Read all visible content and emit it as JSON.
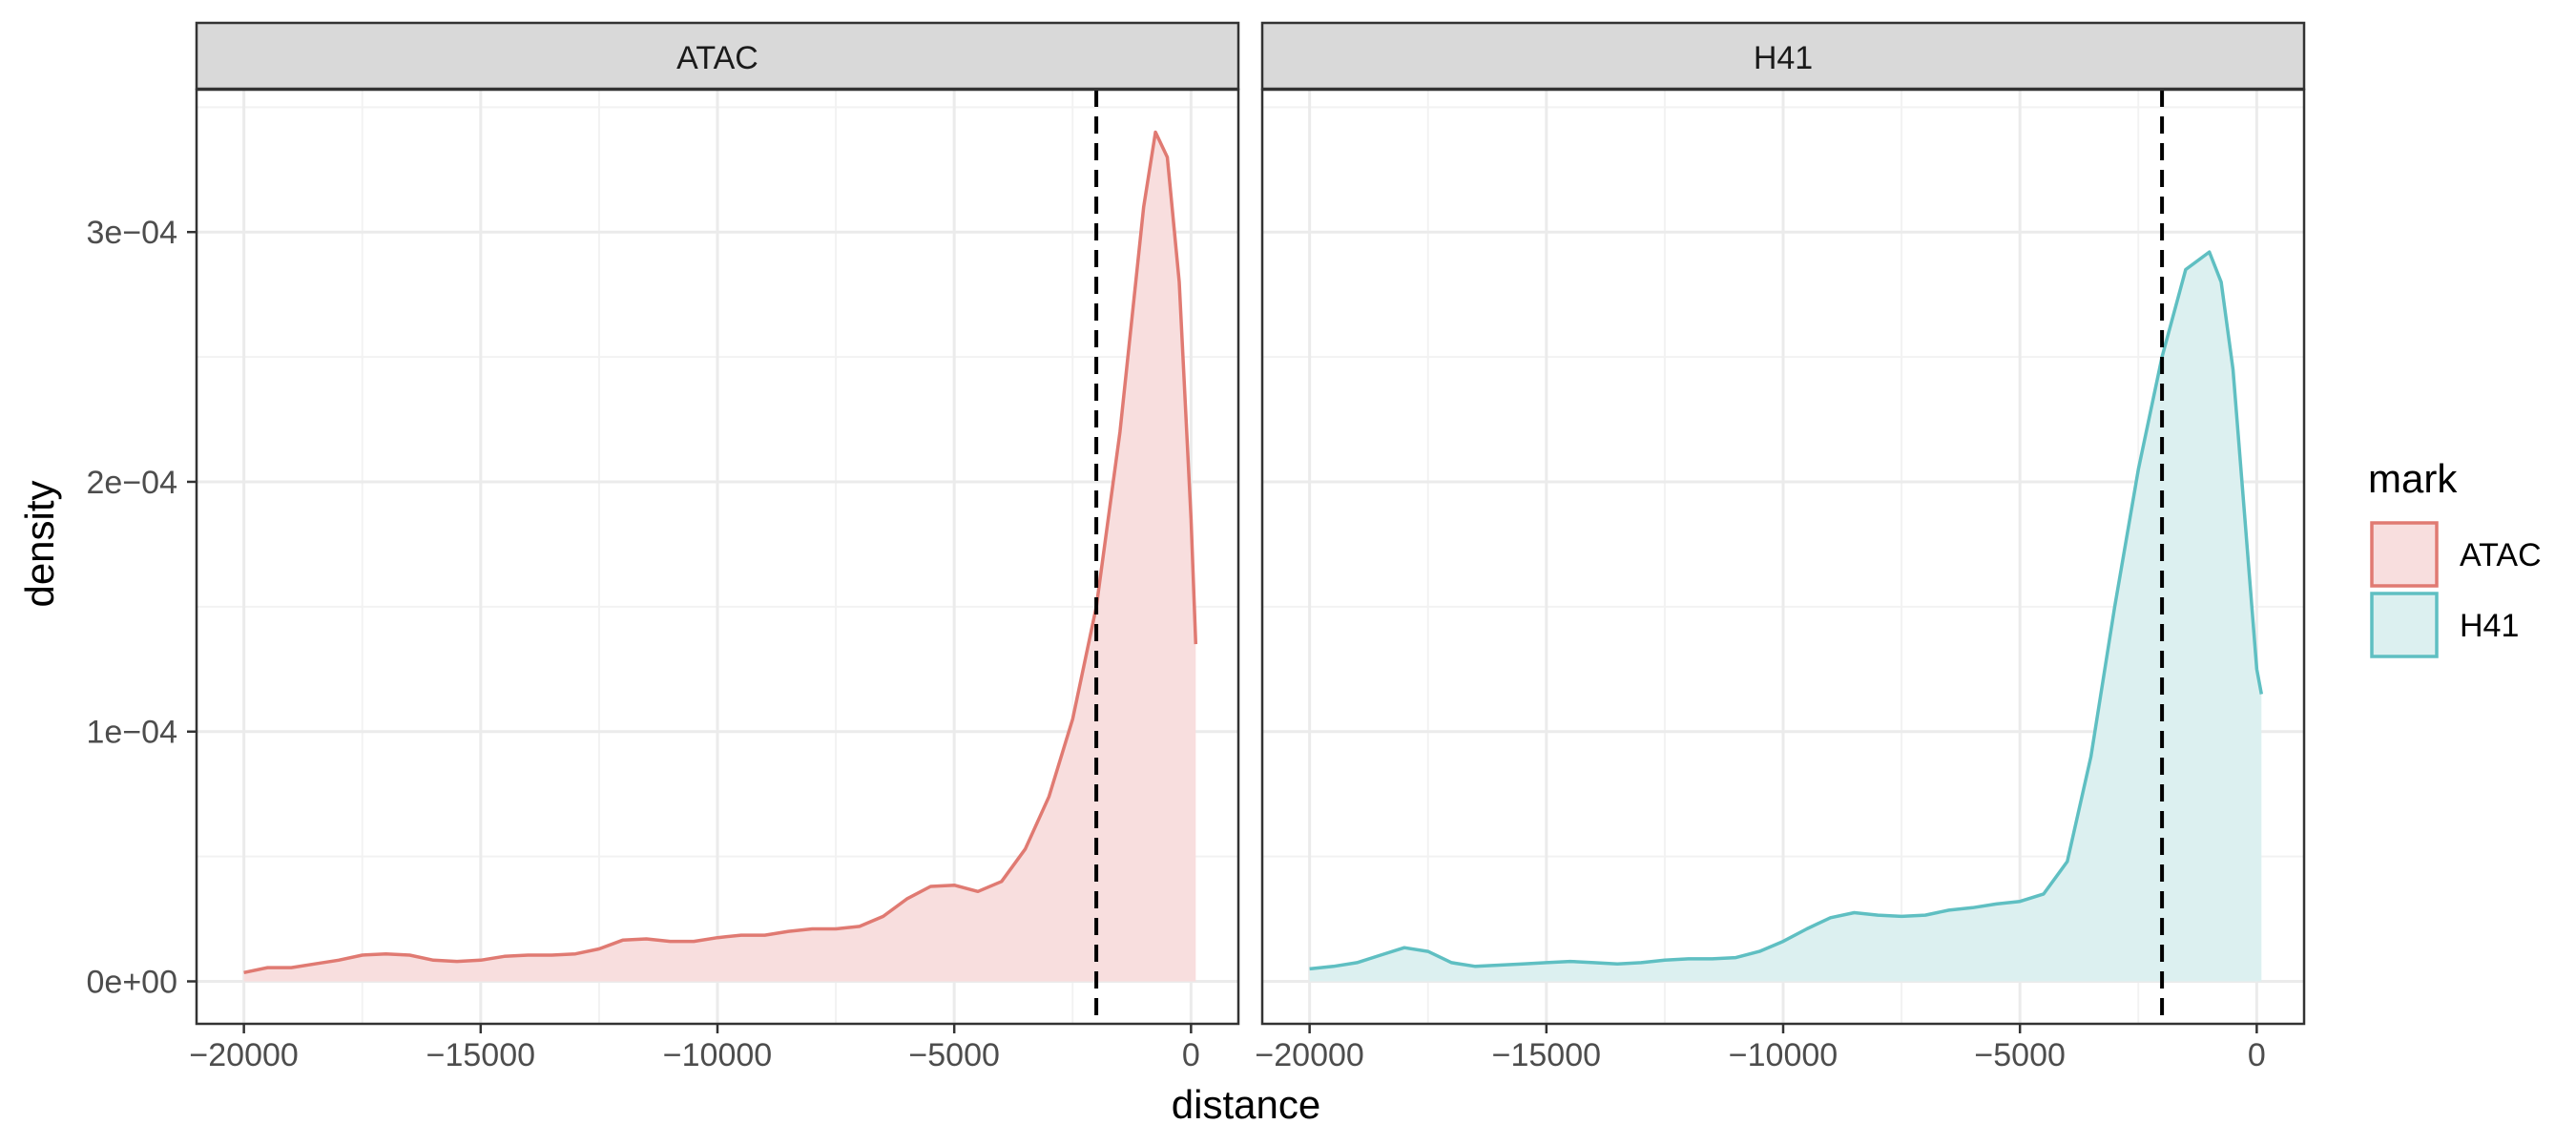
{
  "chart_data": {
    "type": "area",
    "xlabel": "distance",
    "ylabel": "density",
    "x_ticks": [
      -20000,
      -15000,
      -10000,
      -5000,
      0
    ],
    "x_tick_labels": [
      "-20000",
      "-15000",
      "-10000",
      "-5000",
      "0"
    ],
    "y_ticks": [
      0,
      0.0001,
      0.0002,
      0.0003
    ],
    "y_tick_labels": [
      "0e+00",
      "1e-04",
      "2e-04",
      "3e-04"
    ],
    "xlim": [
      -21000,
      1000
    ],
    "ylim": [
      -1.7e-05,
      0.000357
    ],
    "grid": true,
    "vline_x": -2000,
    "legend": {
      "title": "mark",
      "position": "right",
      "entries": [
        "ATAC",
        "H41"
      ]
    },
    "panels": [
      {
        "strip": "ATAC",
        "color": "#E07A72",
        "fill": "#F8DEDE",
        "x": [
          -20000,
          -19500,
          -19000,
          -18500,
          -18000,
          -17500,
          -17000,
          -16500,
          -16000,
          -15500,
          -15000,
          -14500,
          -14000,
          -13500,
          -13000,
          -12500,
          -12000,
          -11500,
          -11000,
          -10500,
          -10000,
          -9500,
          -9000,
          -8500,
          -8000,
          -7500,
          -7000,
          -6500,
          -6000,
          -5500,
          -5000,
          -4500,
          -4000,
          -3500,
          -3000,
          -2500,
          -2000,
          -1500,
          -1000,
          -750,
          -500,
          -250,
          0,
          100
        ],
        "y": [
          3.5e-06,
          5.5e-06,
          5.5e-06,
          7e-06,
          8.5e-06,
          1.05e-05,
          1.1e-05,
          1.05e-05,
          8.5e-06,
          8e-06,
          8.5e-06,
          1e-05,
          1.05e-05,
          1.05e-05,
          1.1e-05,
          1.3e-05,
          1.65e-05,
          1.7e-05,
          1.6e-05,
          1.6e-05,
          1.75e-05,
          1.85e-05,
          1.85e-05,
          2e-05,
          2.1e-05,
          2.1e-05,
          2.2e-05,
          2.6e-05,
          3.3e-05,
          3.8e-05,
          3.85e-05,
          3.6e-05,
          4e-05,
          5.3e-05,
          7.4e-05,
          0.000105,
          0.00015,
          0.00022,
          0.00031,
          0.00034,
          0.00033,
          0.00028,
          0.000185,
          0.000135
        ]
      },
      {
        "strip": "H41",
        "color": "#5FBFC2",
        "fill": "#DCF0F0",
        "x": [
          -20000,
          -19500,
          -19000,
          -18500,
          -18000,
          -17500,
          -17000,
          -16500,
          -16000,
          -15500,
          -15000,
          -14500,
          -14000,
          -13500,
          -13000,
          -12500,
          -12000,
          -11500,
          -11000,
          -10500,
          -10000,
          -9500,
          -9000,
          -8500,
          -8000,
          -7500,
          -7000,
          -6500,
          -6000,
          -5500,
          -5000,
          -4500,
          -4000,
          -3500,
          -3000,
          -2500,
          -2000,
          -1500,
          -1000,
          -750,
          -500,
          -250,
          0,
          100
        ],
        "y": [
          5e-06,
          6e-06,
          7.5e-06,
          1.05e-05,
          1.35e-05,
          1.2e-05,
          7.5e-06,
          6e-06,
          6.5e-06,
          7e-06,
          7.5e-06,
          8e-06,
          7.5e-06,
          7e-06,
          7.5e-06,
          8.5e-06,
          9e-06,
          9e-06,
          9.5e-06,
          1.2e-05,
          1.6e-05,
          2.1e-05,
          2.55e-05,
          2.75e-05,
          2.65e-05,
          2.6e-05,
          2.65e-05,
          2.85e-05,
          2.95e-05,
          3.1e-05,
          3.2e-05,
          3.5e-05,
          4.8e-05,
          9e-05,
          0.00015,
          0.000205,
          0.00025,
          0.000285,
          0.000292,
          0.00028,
          0.000245,
          0.000185,
          0.000125,
          0.000115
        ]
      }
    ]
  }
}
